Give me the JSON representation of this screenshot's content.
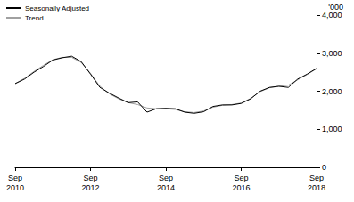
{
  "chart_data": {
    "type": "line",
    "y_label": "'000",
    "categories": [
      "Sep\n2010",
      null,
      null,
      null,
      null,
      null,
      null,
      null,
      "Sep\n2012",
      null,
      null,
      null,
      null,
      null,
      null,
      null,
      "Sep\n2014",
      null,
      null,
      null,
      null,
      null,
      null,
      null,
      "Sep\n2016",
      null,
      null,
      null,
      null,
      null,
      null,
      null,
      "Sep\n2018"
    ],
    "series": [
      {
        "name": "Seasonally Adjusted",
        "color": "#000000",
        "values": [
          2200,
          2320,
          2500,
          2650,
          2820,
          2880,
          2920,
          2780,
          2450,
          2100,
          1950,
          1820,
          1700,
          1720,
          1450,
          1540,
          1550,
          1540,
          1450,
          1420,
          1460,
          1600,
          1640,
          1640,
          1680,
          1800,
          2000,
          2100,
          2130,
          2100,
          2320,
          2450,
          2600
        ]
      },
      {
        "name": "Trend",
        "color": "#a0a0a0",
        "values": [
          2200,
          2340,
          2520,
          2680,
          2830,
          2890,
          2890,
          2760,
          2470,
          2130,
          1930,
          1800,
          1700,
          1650,
          1560,
          1540,
          1540,
          1520,
          1460,
          1440,
          1480,
          1580,
          1630,
          1650,
          1690,
          1810,
          1990,
          2090,
          2130,
          2160,
          2300,
          2440,
          2590
        ]
      }
    ],
    "ylim": [
      0,
      4000
    ],
    "yticks": [
      0,
      1000,
      2000,
      3000,
      4000
    ],
    "grid": false,
    "legend": "upper left"
  }
}
